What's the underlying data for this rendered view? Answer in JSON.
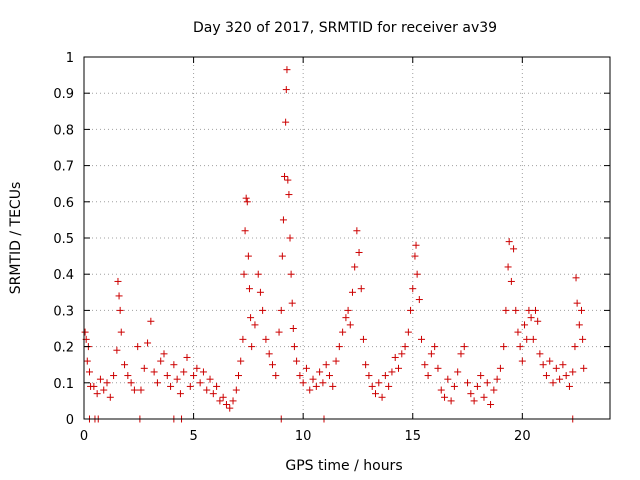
{
  "chart_data": {
    "type": "scatter",
    "title": "Day 320 of 2017, SRMTID for receiver av39",
    "xlabel": "GPS time / hours",
    "ylabel": "SRMTID / TECUs",
    "xlim": [
      0,
      24
    ],
    "ylim": [
      0,
      1
    ],
    "x_ticks": [
      0,
      5,
      10,
      15,
      20
    ],
    "x_tick_labels": [
      "0",
      "5",
      "10",
      "15",
      "20"
    ],
    "y_ticks": [
      0,
      0.1,
      0.2,
      0.3,
      0.4,
      0.5,
      0.6,
      0.7,
      0.8,
      0.9,
      1
    ],
    "y_tick_labels": [
      "0",
      "0.1",
      "0.2",
      "0.3",
      "0.4",
      "0.5",
      "0.6",
      "0.7",
      "0.8",
      "0.9",
      "1"
    ],
    "grid": true,
    "marker": "+",
    "color": "#cc0000",
    "series": [
      {
        "name": "SRMTID",
        "points": [
          [
            0.05,
            0.24
          ],
          [
            0.1,
            0.22
          ],
          [
            0.15,
            0.16
          ],
          [
            0.2,
            0.2
          ],
          [
            0.25,
            0.13
          ],
          [
            0.3,
            0.09
          ],
          [
            0.45,
            0.09
          ],
          [
            0.6,
            0.07
          ],
          [
            0.75,
            0.11
          ],
          [
            0.9,
            0.08
          ],
          [
            1.05,
            0.1
          ],
          [
            1.2,
            0.06
          ],
          [
            1.35,
            0.12
          ],
          [
            1.5,
            0.19
          ],
          [
            1.55,
            0.38
          ],
          [
            1.6,
            0.34
          ],
          [
            1.65,
            0.3
          ],
          [
            1.7,
            0.24
          ],
          [
            1.85,
            0.15
          ],
          [
            2.0,
            0.12
          ],
          [
            2.15,
            0.1
          ],
          [
            2.3,
            0.08
          ],
          [
            2.45,
            0.2
          ],
          [
            2.6,
            0.08
          ],
          [
            2.75,
            0.14
          ],
          [
            2.9,
            0.21
          ],
          [
            3.05,
            0.27
          ],
          [
            3.2,
            0.13
          ],
          [
            3.35,
            0.1
          ],
          [
            3.5,
            0.16
          ],
          [
            3.65,
            0.18
          ],
          [
            3.8,
            0.12
          ],
          [
            3.95,
            0.09
          ],
          [
            4.1,
            0.15
          ],
          [
            4.25,
            0.11
          ],
          [
            4.4,
            0.07
          ],
          [
            4.55,
            0.13
          ],
          [
            4.7,
            0.17
          ],
          [
            4.85,
            0.09
          ],
          [
            5.0,
            0.12
          ],
          [
            5.15,
            0.14
          ],
          [
            5.3,
            0.1
          ],
          [
            5.45,
            0.13
          ],
          [
            5.6,
            0.08
          ],
          [
            5.75,
            0.11
          ],
          [
            5.9,
            0.07
          ],
          [
            6.05,
            0.09
          ],
          [
            6.2,
            0.05
          ],
          [
            6.35,
            0.06
          ],
          [
            6.5,
            0.04
          ],
          [
            6.65,
            0.03
          ],
          [
            6.8,
            0.05
          ],
          [
            6.95,
            0.08
          ],
          [
            7.05,
            0.12
          ],
          [
            7.15,
            0.16
          ],
          [
            7.25,
            0.22
          ],
          [
            7.3,
            0.4
          ],
          [
            7.35,
            0.52
          ],
          [
            7.4,
            0.61
          ],
          [
            7.45,
            0.6
          ],
          [
            7.5,
            0.45
          ],
          [
            7.55,
            0.36
          ],
          [
            7.6,
            0.28
          ],
          [
            7.65,
            0.2
          ],
          [
            7.8,
            0.26
          ],
          [
            7.95,
            0.4
          ],
          [
            8.05,
            0.35
          ],
          [
            8.15,
            0.3
          ],
          [
            8.3,
            0.22
          ],
          [
            8.45,
            0.18
          ],
          [
            8.6,
            0.15
          ],
          [
            8.75,
            0.12
          ],
          [
            8.9,
            0.24
          ],
          [
            9.0,
            0.3
          ],
          [
            9.05,
            0.45
          ],
          [
            9.1,
            0.55
          ],
          [
            9.15,
            0.67
          ],
          [
            9.2,
            0.82
          ],
          [
            9.23,
            0.91
          ],
          [
            9.26,
            0.965
          ],
          [
            9.3,
            0.66
          ],
          [
            9.35,
            0.62
          ],
          [
            9.4,
            0.5
          ],
          [
            9.45,
            0.4
          ],
          [
            9.5,
            0.32
          ],
          [
            9.55,
            0.25
          ],
          [
            9.6,
            0.2
          ],
          [
            9.7,
            0.16
          ],
          [
            9.85,
            0.12
          ],
          [
            10.0,
            0.1
          ],
          [
            10.15,
            0.14
          ],
          [
            10.3,
            0.08
          ],
          [
            10.45,
            0.11
          ],
          [
            10.6,
            0.09
          ],
          [
            10.75,
            0.13
          ],
          [
            10.9,
            0.1
          ],
          [
            11.05,
            0.15
          ],
          [
            11.2,
            0.12
          ],
          [
            11.35,
            0.09
          ],
          [
            11.5,
            0.16
          ],
          [
            11.65,
            0.2
          ],
          [
            11.8,
            0.24
          ],
          [
            11.95,
            0.28
          ],
          [
            12.05,
            0.3
          ],
          [
            12.15,
            0.26
          ],
          [
            12.25,
            0.35
          ],
          [
            12.35,
            0.42
          ],
          [
            12.45,
            0.52
          ],
          [
            12.55,
            0.46
          ],
          [
            12.65,
            0.36
          ],
          [
            12.75,
            0.22
          ],
          [
            12.85,
            0.15
          ],
          [
            13.0,
            0.12
          ],
          [
            13.15,
            0.09
          ],
          [
            13.3,
            0.07
          ],
          [
            13.45,
            0.1
          ],
          [
            13.6,
            0.06
          ],
          [
            13.75,
            0.12
          ],
          [
            13.9,
            0.09
          ],
          [
            14.05,
            0.13
          ],
          [
            14.2,
            0.17
          ],
          [
            14.35,
            0.14
          ],
          [
            14.5,
            0.18
          ],
          [
            14.65,
            0.2
          ],
          [
            14.8,
            0.24
          ],
          [
            14.9,
            0.3
          ],
          [
            15.0,
            0.36
          ],
          [
            15.1,
            0.45
          ],
          [
            15.15,
            0.48
          ],
          [
            15.2,
            0.4
          ],
          [
            15.3,
            0.33
          ],
          [
            15.4,
            0.22
          ],
          [
            15.55,
            0.15
          ],
          [
            15.7,
            0.12
          ],
          [
            15.85,
            0.18
          ],
          [
            16.0,
            0.2
          ],
          [
            16.15,
            0.14
          ],
          [
            16.3,
            0.08
          ],
          [
            16.45,
            0.06
          ],
          [
            16.6,
            0.11
          ],
          [
            16.75,
            0.05
          ],
          [
            16.9,
            0.09
          ],
          [
            17.05,
            0.13
          ],
          [
            17.2,
            0.18
          ],
          [
            17.35,
            0.2
          ],
          [
            17.5,
            0.1
          ],
          [
            17.65,
            0.07
          ],
          [
            17.8,
            0.05
          ],
          [
            17.95,
            0.09
          ],
          [
            18.1,
            0.12
          ],
          [
            18.25,
            0.06
          ],
          [
            18.4,
            0.1
          ],
          [
            18.55,
            0.04
          ],
          [
            18.7,
            0.08
          ],
          [
            18.85,
            0.11
          ],
          [
            19.0,
            0.14
          ],
          [
            19.15,
            0.2
          ],
          [
            19.25,
            0.3
          ],
          [
            19.35,
            0.42
          ],
          [
            19.4,
            0.49
          ],
          [
            19.5,
            0.38
          ],
          [
            19.6,
            0.47
          ],
          [
            19.7,
            0.3
          ],
          [
            19.8,
            0.24
          ],
          [
            19.9,
            0.2
          ],
          [
            20.0,
            0.16
          ],
          [
            20.1,
            0.26
          ],
          [
            20.2,
            0.22
          ],
          [
            20.3,
            0.3
          ],
          [
            20.4,
            0.28
          ],
          [
            20.5,
            0.22
          ],
          [
            20.6,
            0.3
          ],
          [
            20.7,
            0.27
          ],
          [
            20.8,
            0.18
          ],
          [
            20.95,
            0.15
          ],
          [
            21.1,
            0.12
          ],
          [
            21.25,
            0.16
          ],
          [
            21.4,
            0.1
          ],
          [
            21.55,
            0.14
          ],
          [
            21.7,
            0.11
          ],
          [
            21.85,
            0.15
          ],
          [
            22.0,
            0.12
          ],
          [
            22.15,
            0.09
          ],
          [
            22.3,
            0.13
          ],
          [
            22.4,
            0.2
          ],
          [
            22.45,
            0.39
          ],
          [
            22.5,
            0.32
          ],
          [
            22.6,
            0.26
          ],
          [
            22.7,
            0.3
          ],
          [
            22.75,
            0.22
          ],
          [
            22.8,
            0.14
          ]
        ]
      }
    ],
    "zero_markers": [
      0.25,
      0.5,
      0.65,
      2.55,
      4.1,
      4.45,
      9.0,
      10.95,
      22.3
    ]
  }
}
